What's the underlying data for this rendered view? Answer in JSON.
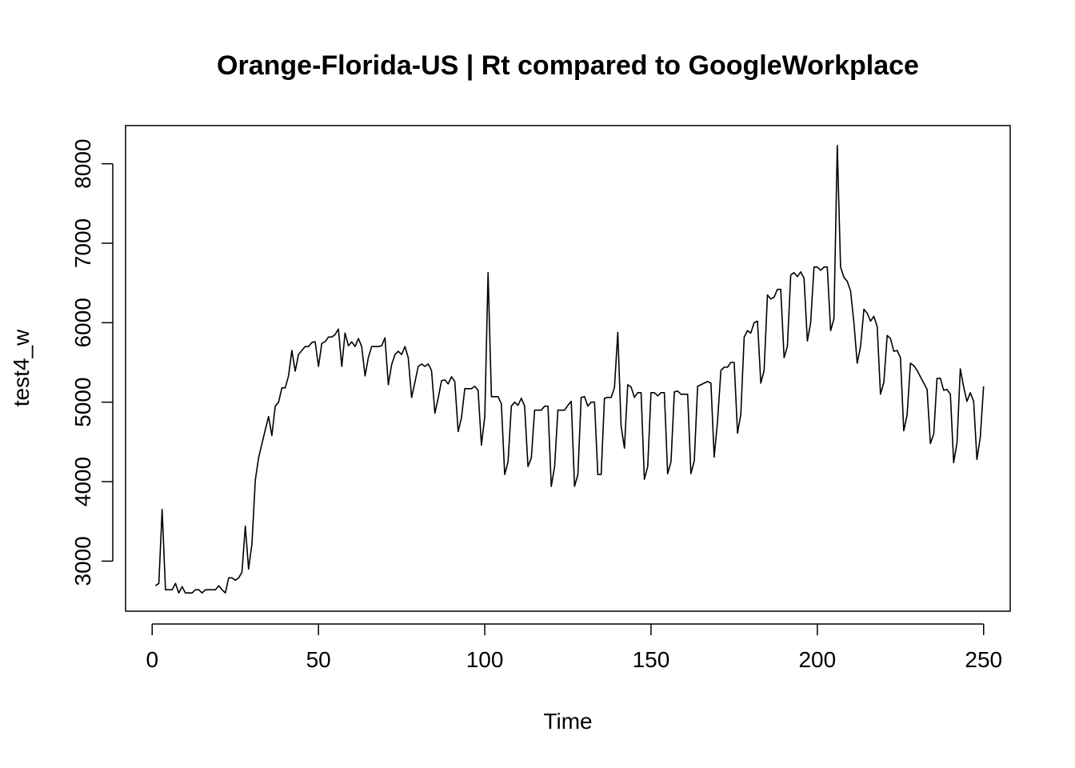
{
  "chart_data": {
    "type": "line",
    "title": "Orange-Florida-US | Rt compared to GoogleWorkplace",
    "xlabel": "Time",
    "ylabel": "test4_w",
    "xlim": [
      -8,
      258
    ],
    "ylim": [
      2370,
      8480
    ],
    "x_ticks": [
      0,
      50,
      100,
      150,
      200,
      250
    ],
    "y_ticks": [
      3000,
      4000,
      5000,
      6000,
      7000,
      8000
    ],
    "grid": false,
    "legend": "none",
    "line_color": "#000000",
    "series": [
      {
        "x_start": 1,
        "values": [
          2690,
          2720,
          3650,
          2640,
          2640,
          2640,
          2720,
          2600,
          2680,
          2600,
          2600,
          2600,
          2640,
          2640,
          2600,
          2640,
          2640,
          2640,
          2640,
          2690,
          2640,
          2600,
          2790,
          2790,
          2760,
          2790,
          2860,
          3440,
          2900,
          3220,
          4020,
          4300,
          4480,
          4650,
          4820,
          4580,
          4950,
          5000,
          5180,
          5180,
          5330,
          5650,
          5390,
          5600,
          5650,
          5700,
          5700,
          5750,
          5760,
          5450,
          5740,
          5760,
          5820,
          5820,
          5850,
          5920,
          5450,
          5870,
          5710,
          5760,
          5700,
          5800,
          5700,
          5330,
          5560,
          5700,
          5700,
          5700,
          5710,
          5810,
          5220,
          5470,
          5600,
          5640,
          5600,
          5700,
          5560,
          5060,
          5250,
          5450,
          5480,
          5450,
          5480,
          5400,
          4860,
          5050,
          5270,
          5280,
          5230,
          5320,
          5260,
          4630,
          4800,
          5170,
          5170,
          5170,
          5200,
          5150,
          4460,
          4820,
          6630,
          5070,
          5070,
          5070,
          4980,
          4090,
          4250,
          4950,
          5000,
          4960,
          5050,
          4950,
          4190,
          4300,
          4900,
          4900,
          4900,
          4950,
          4950,
          3940,
          4190,
          4900,
          4900,
          4900,
          4960,
          5010,
          3940,
          4090,
          5060,
          5070,
          4950,
          5000,
          5000,
          4090,
          4090,
          5050,
          5060,
          5060,
          5180,
          5880,
          4700,
          4420,
          5220,
          5190,
          5060,
          5120,
          5120,
          4030,
          4190,
          5120,
          5120,
          5080,
          5120,
          5120,
          4100,
          4250,
          5130,
          5140,
          5100,
          5100,
          5100,
          4100,
          4260,
          5200,
          5220,
          5240,
          5260,
          5240,
          4310,
          4760,
          5400,
          5440,
          5440,
          5500,
          5500,
          4610,
          4850,
          5820,
          5900,
          5870,
          6000,
          6020,
          5240,
          5400,
          6350,
          6300,
          6320,
          6420,
          6420,
          5560,
          5700,
          6600,
          6630,
          6580,
          6640,
          6560,
          5770,
          6000,
          6700,
          6700,
          6660,
          6700,
          6700,
          5900,
          6050,
          8230,
          6700,
          6570,
          6520,
          6400,
          6000,
          5490,
          5700,
          6170,
          6120,
          6020,
          6080,
          5950,
          5100,
          5250,
          5840,
          5800,
          5640,
          5650,
          5560,
          4640,
          4840,
          5490,
          5460,
          5400,
          5320,
          5240,
          5160,
          4480,
          4600,
          5300,
          5300,
          5150,
          5160,
          5100,
          4240,
          4490,
          5420,
          5190,
          5010,
          5120,
          5010,
          4280,
          4560,
          5200
        ]
      }
    ]
  }
}
